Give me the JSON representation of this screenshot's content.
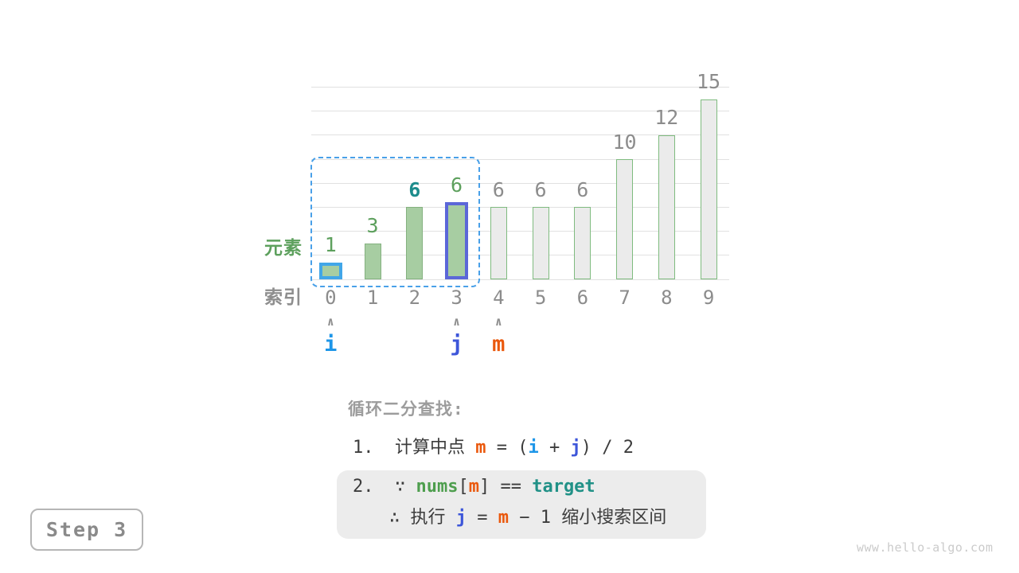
{
  "page": {
    "background": "#ffffff",
    "step_badge": "Step 3",
    "watermark": "www.hello-algo.com"
  },
  "chart_data": {
    "type": "bar",
    "title": "",
    "categories": [
      "0",
      "1",
      "2",
      "3",
      "4",
      "5",
      "6",
      "7",
      "8",
      "9"
    ],
    "values": [
      1,
      3,
      6,
      6,
      6,
      6,
      6,
      10,
      12,
      15
    ],
    "xlabel": "索引",
    "ylabel": "元素",
    "ylim": [
      0,
      16
    ],
    "grid_step": 2,
    "grid": true,
    "legend": "none",
    "bars": [
      {
        "label": "1",
        "label_color": "#5da05d",
        "label_bold": false,
        "fill": "#a7cda2",
        "border": "#41a6e8",
        "border_width": 4
      },
      {
        "label": "3",
        "label_color": "#5da05d",
        "label_bold": false,
        "fill": "#a7cda2",
        "border": "#84b17f",
        "border_width": 1.5
      },
      {
        "label": "6",
        "label_color": "#1d8c8c",
        "label_bold": true,
        "fill": "#a7cda2",
        "border": "#84b17f",
        "border_width": 1.5
      },
      {
        "label": "6",
        "label_color": "#5da05d",
        "label_bold": false,
        "fill": "#a7cda2",
        "border": "#5b67d8",
        "border_width": 4
      },
      {
        "label": "6",
        "label_color": "#8c8c8c",
        "label_bold": false,
        "fill": "#ebebeb",
        "border": "#7fbb7f",
        "border_width": 1.5
      },
      {
        "label": "6",
        "label_color": "#8c8c8c",
        "label_bold": false,
        "fill": "#ebebeb",
        "border": "#7fbb7f",
        "border_width": 1.5
      },
      {
        "label": "6",
        "label_color": "#8c8c8c",
        "label_bold": false,
        "fill": "#ebebeb",
        "border": "#7fbb7f",
        "border_width": 1.5
      },
      {
        "label": "10",
        "label_color": "#8c8c8c",
        "label_bold": false,
        "fill": "#ebebeb",
        "border": "#7fbb7f",
        "border_width": 1.5
      },
      {
        "label": "12",
        "label_color": "#8c8c8c",
        "label_bold": false,
        "fill": "#ebebeb",
        "border": "#7fbb7f",
        "border_width": 1.5
      },
      {
        "label": "15",
        "label_color": "#8c8c8c",
        "label_bold": false,
        "fill": "#ebebeb",
        "border": "#7fbb7f",
        "border_width": 1.5
      }
    ],
    "search_range": {
      "from_index": 0,
      "to_index": 3,
      "color": "#49a0e8"
    },
    "pointers": [
      {
        "label": "i",
        "index": 0,
        "color": "#1e96e8"
      },
      {
        "label": "j",
        "index": 3,
        "color": "#3d56d9"
      },
      {
        "label": "m",
        "index": 4,
        "color": "#ea580c"
      }
    ],
    "pointer_arrow": {
      "glyph": "∧",
      "color": "#8f8f8f"
    }
  },
  "annotation": {
    "heading": "循环二分查找:",
    "step1_segments": [
      {
        "t": "1.  计算中点 ",
        "c": "#3c3c3c"
      },
      {
        "t": "m",
        "c": "#ea580c",
        "b": true
      },
      {
        "t": " = (",
        "c": "#3c3c3c"
      },
      {
        "t": "i",
        "c": "#1e96e8",
        "b": true
      },
      {
        "t": " + ",
        "c": "#3c3c3c"
      },
      {
        "t": "j",
        "c": "#3d56d9",
        "b": true
      },
      {
        "t": ") / 2",
        "c": "#3c3c3c"
      }
    ],
    "step2_line1_segments": [
      {
        "t": "2.  ∵ ",
        "c": "#3c3c3c"
      },
      {
        "t": "nums",
        "c": "#4e9e4e",
        "b": true
      },
      {
        "t": "[",
        "c": "#3c3c3c"
      },
      {
        "t": "m",
        "c": "#ea580c",
        "b": true
      },
      {
        "t": "] == ",
        "c": "#3c3c3c"
      },
      {
        "t": "target",
        "c": "#219187",
        "b": true
      }
    ],
    "step2_line2_segments": [
      {
        "t": "∴ 执行 ",
        "c": "#3c3c3c"
      },
      {
        "t": "j",
        "c": "#3d56d9",
        "b": true
      },
      {
        "t": " = ",
        "c": "#3c3c3c"
      },
      {
        "t": "m",
        "c": "#ea580c",
        "b": true
      },
      {
        "t": " − 1 缩小搜索区间",
        "c": "#3c3c3c"
      }
    ]
  }
}
